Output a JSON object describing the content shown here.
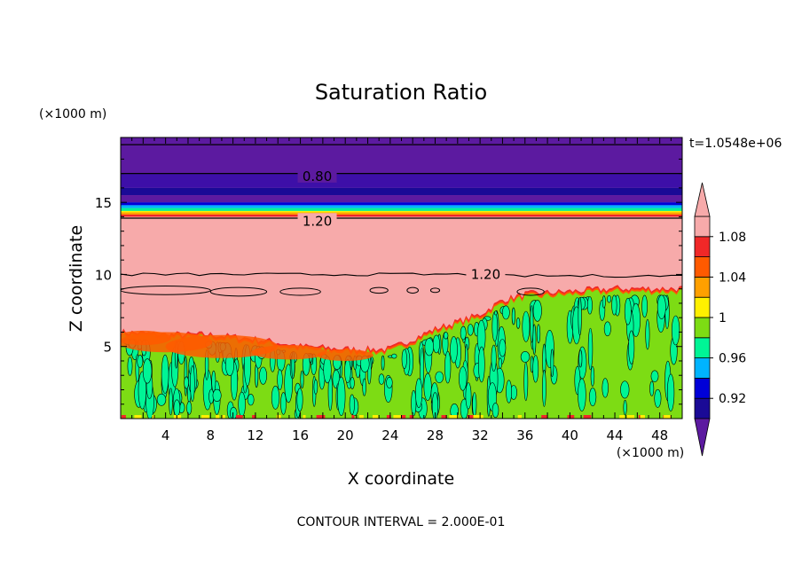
{
  "chart_data": {
    "type": "heatmap",
    "title": "Saturation Ratio",
    "xlabel": "X coordinate",
    "ylabel": "Z coordinate",
    "x_units": "(×1000 m)",
    "z_units": "(×1000 m)",
    "time_label": "t=1.0548e+06",
    "footer": "CONTOUR INTERVAL = 2.000E-01",
    "xlim": [
      0,
      50
    ],
    "zlim": [
      0,
      19.5
    ],
    "x_ticks": [
      4,
      8,
      12,
      16,
      20,
      24,
      28,
      32,
      36,
      40,
      44,
      48
    ],
    "x_tick_labels": [
      "4",
      "8",
      "12",
      "16",
      "20",
      "24",
      "28",
      "32",
      "36",
      "40",
      "44",
      "48"
    ],
    "z_ticks": [
      5,
      10,
      15
    ],
    "z_tick_labels": [
      "5",
      "10",
      "15"
    ],
    "colorbar": {
      "levels": [
        0.9,
        0.92,
        0.94,
        0.96,
        0.98,
        1.0,
        1.02,
        1.04,
        1.06,
        1.08,
        1.1
      ],
      "labels": [
        "0.92",
        "0.96",
        "1",
        "1.04",
        "1.08"
      ],
      "label_values": [
        0.92,
        0.96,
        1.0,
        1.04,
        1.08
      ],
      "colors": [
        "#5c1aa0",
        "#1a0a96",
        "#0000d8",
        "#00b4ff",
        "#00f596",
        "#7ddc14",
        "#fff000",
        "#ffa000",
        "#ff5a00",
        "#f02828",
        "#f7aaaa"
      ]
    },
    "contour_labels": [
      {
        "text": "0.80",
        "x": 17.5,
        "z": 16.8
      },
      {
        "text": "1.20",
        "x": 17.5,
        "z": 13.7
      },
      {
        "text": "1.20",
        "x": 32.5,
        "z": 10.0
      }
    ],
    "bands": [
      {
        "z_from": 17.0,
        "z_to": 19.5,
        "color": "#5c1aa0"
      },
      {
        "z_from": 16.0,
        "z_to": 17.0,
        "color": "#3d0fa8"
      },
      {
        "z_from": 15.5,
        "z_to": 16.0,
        "color": "#1a0a96"
      },
      {
        "z_from": 15.0,
        "z_to": 15.5,
        "color": "#5c1aa0"
      },
      {
        "z_from": 14.8,
        "z_to": 15.0,
        "color": "#0000d8"
      },
      {
        "z_from": 14.6,
        "z_to": 14.8,
        "color": "#00b4ff"
      },
      {
        "z_from": 14.4,
        "z_to": 14.6,
        "color": "#00f596"
      },
      {
        "z_from": 14.3,
        "z_to": 14.4,
        "color": "#fff000"
      },
      {
        "z_from": 14.15,
        "z_to": 14.3,
        "color": "#ffa000"
      },
      {
        "z_from": 14.0,
        "z_to": 14.15,
        "color": "#f02828"
      }
    ],
    "contour_lines_z": [
      19.0,
      17.0,
      13.9
    ],
    "cloud_top_profile": [
      {
        "x": 0,
        "z": 5.8
      },
      {
        "x": 4,
        "z": 5.6
      },
      {
        "x": 8,
        "z": 5.6
      },
      {
        "x": 12,
        "z": 5.3
      },
      {
        "x": 16,
        "z": 4.8
      },
      {
        "x": 20,
        "z": 4.6
      },
      {
        "x": 24,
        "z": 4.6
      },
      {
        "x": 28,
        "z": 6.0
      },
      {
        "x": 32,
        "z": 7.0
      },
      {
        "x": 34,
        "z": 8.0
      },
      {
        "x": 36,
        "z": 8.4
      },
      {
        "x": 40,
        "z": 8.6
      },
      {
        "x": 44,
        "z": 8.8
      },
      {
        "x": 48,
        "z": 8.8
      },
      {
        "x": 50,
        "z": 8.8
      }
    ]
  }
}
